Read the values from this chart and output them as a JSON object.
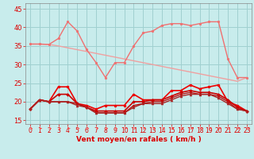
{
  "bg_color": "#c8ecec",
  "grid_color": "#a0d0d0",
  "x_label": "Vent moyen/en rafales ( km/h )",
  "xlim": [
    -0.5,
    23.5
  ],
  "ylim": [
    14.0,
    46.5
  ],
  "yticks": [
    15,
    20,
    25,
    30,
    35,
    40,
    45
  ],
  "xticks": [
    0,
    1,
    2,
    3,
    4,
    5,
    6,
    7,
    8,
    9,
    10,
    11,
    12,
    13,
    14,
    15,
    16,
    17,
    18,
    19,
    20,
    21,
    22,
    23
  ],
  "series": [
    {
      "y": [
        35.5,
        35.5,
        35.4,
        35.0,
        34.5,
        34.0,
        33.5,
        33.0,
        32.5,
        32.0,
        31.5,
        31.0,
        30.5,
        30.0,
        29.5,
        29.0,
        28.5,
        28.0,
        27.5,
        27.0,
        26.5,
        26.0,
        25.5,
        26.5
      ],
      "color": "#f0a0a0",
      "lw": 1.0,
      "marker": null
    },
    {
      "y": [
        35.5,
        35.5,
        35.4,
        37.0,
        41.5,
        39.0,
        34.0,
        30.5,
        26.5,
        30.5,
        30.5,
        35.0,
        38.5,
        39.0,
        40.5,
        41.0,
        41.0,
        40.5,
        41.0,
        41.5,
        41.5,
        31.5,
        26.5,
        26.5
      ],
      "color": "#f07070",
      "lw": 1.0,
      "marker": "o",
      "ms": 1.8
    },
    {
      "y": [
        18.0,
        20.5,
        20.0,
        24.0,
        24.0,
        19.5,
        19.0,
        18.0,
        19.0,
        19.0,
        19.0,
        22.0,
        20.5,
        20.5,
        20.5,
        23.0,
        23.0,
        24.5,
        23.5,
        24.0,
        24.5,
        20.0,
        19.0,
        17.5
      ],
      "color": "#ee0000",
      "lw": 1.2,
      "marker": "o",
      "ms": 2.0
    },
    {
      "y": [
        18.0,
        20.5,
        20.0,
        22.0,
        22.0,
        19.5,
        18.5,
        17.5,
        17.5,
        17.5,
        17.5,
        20.0,
        20.0,
        20.5,
        20.5,
        21.5,
        22.5,
        23.0,
        22.5,
        22.5,
        22.0,
        20.5,
        18.5,
        17.5
      ],
      "color": "#cc0000",
      "lw": 1.2,
      "marker": "D",
      "ms": 1.8
    },
    {
      "y": [
        18.0,
        20.5,
        20.0,
        20.0,
        20.0,
        19.5,
        18.5,
        17.0,
        17.0,
        17.0,
        17.0,
        19.0,
        19.5,
        20.0,
        20.0,
        21.0,
        22.0,
        22.5,
        22.0,
        22.0,
        21.5,
        20.0,
        18.0,
        17.5
      ],
      "color": "#bb1111",
      "lw": 1.0,
      "marker": "s",
      "ms": 1.6
    },
    {
      "y": [
        18.0,
        20.5,
        20.0,
        20.0,
        20.0,
        19.0,
        18.5,
        17.0,
        17.0,
        17.0,
        17.0,
        18.5,
        19.5,
        19.5,
        19.5,
        20.5,
        21.5,
        22.0,
        22.0,
        22.0,
        21.0,
        19.5,
        18.0,
        17.5
      ],
      "color": "#aa2222",
      "lw": 1.0,
      "marker": "^",
      "ms": 2.0
    }
  ],
  "arrow_color": "#ff5555",
  "title_color": "#dd0000",
  "axis_color": "#888888",
  "tick_color": "#dd0000",
  "xlabel_fontsize": 6.5,
  "xlabel_fontweight": "bold",
  "ytick_fontsize": 6,
  "xtick_fontsize": 5.5
}
